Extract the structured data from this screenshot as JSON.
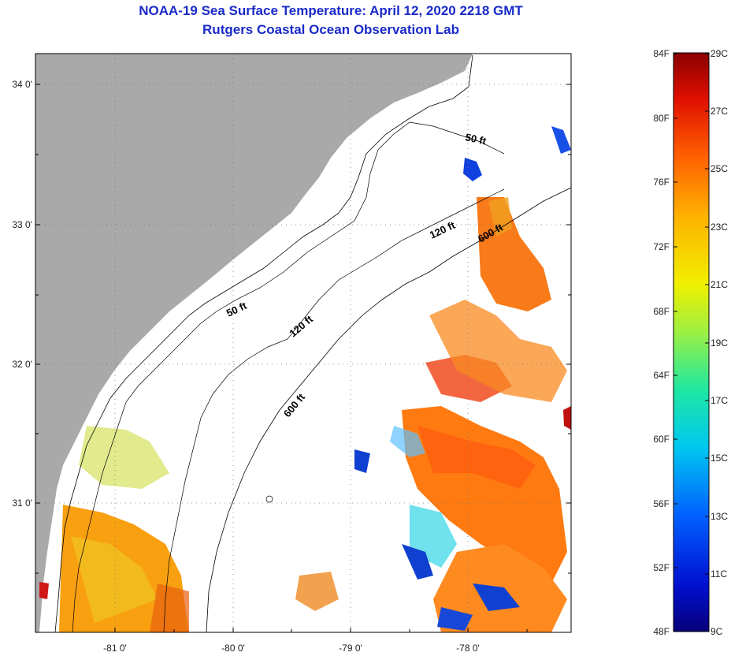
{
  "title": "NOAA-19 Sea Surface Temperature:  April 12, 2020 2218 GMT",
  "subtitle": "Rutgers Coastal Ocean Observation Lab",
  "axes": {
    "lat_ticks": [
      "34 0'",
      "33 0'",
      "32 0'",
      "31 0'"
    ],
    "lon_ticks": [
      "-81 0'",
      "-80 0'",
      "-79 0'",
      "-78 0'"
    ]
  },
  "contours": [
    {
      "label": "50 ft"
    },
    {
      "label": "50 ft"
    },
    {
      "label": "120 ft"
    },
    {
      "label": "120 ft"
    },
    {
      "label": "600 ft"
    },
    {
      "label": "600 ft"
    }
  ],
  "colorbar": {
    "fahrenheit": [
      "84F",
      "80F",
      "76F",
      "72F",
      "68F",
      "64F",
      "60F",
      "56F",
      "52F",
      "48F"
    ],
    "celsius": [
      "29C",
      "27C",
      "25C",
      "23C",
      "21C",
      "19C",
      "17C",
      "15C",
      "13C",
      "11C",
      "9C"
    ]
  },
  "colors": {
    "land": "#a9a9a9",
    "title": "#1a2bc8",
    "water_nodata": "#ffffff"
  }
}
